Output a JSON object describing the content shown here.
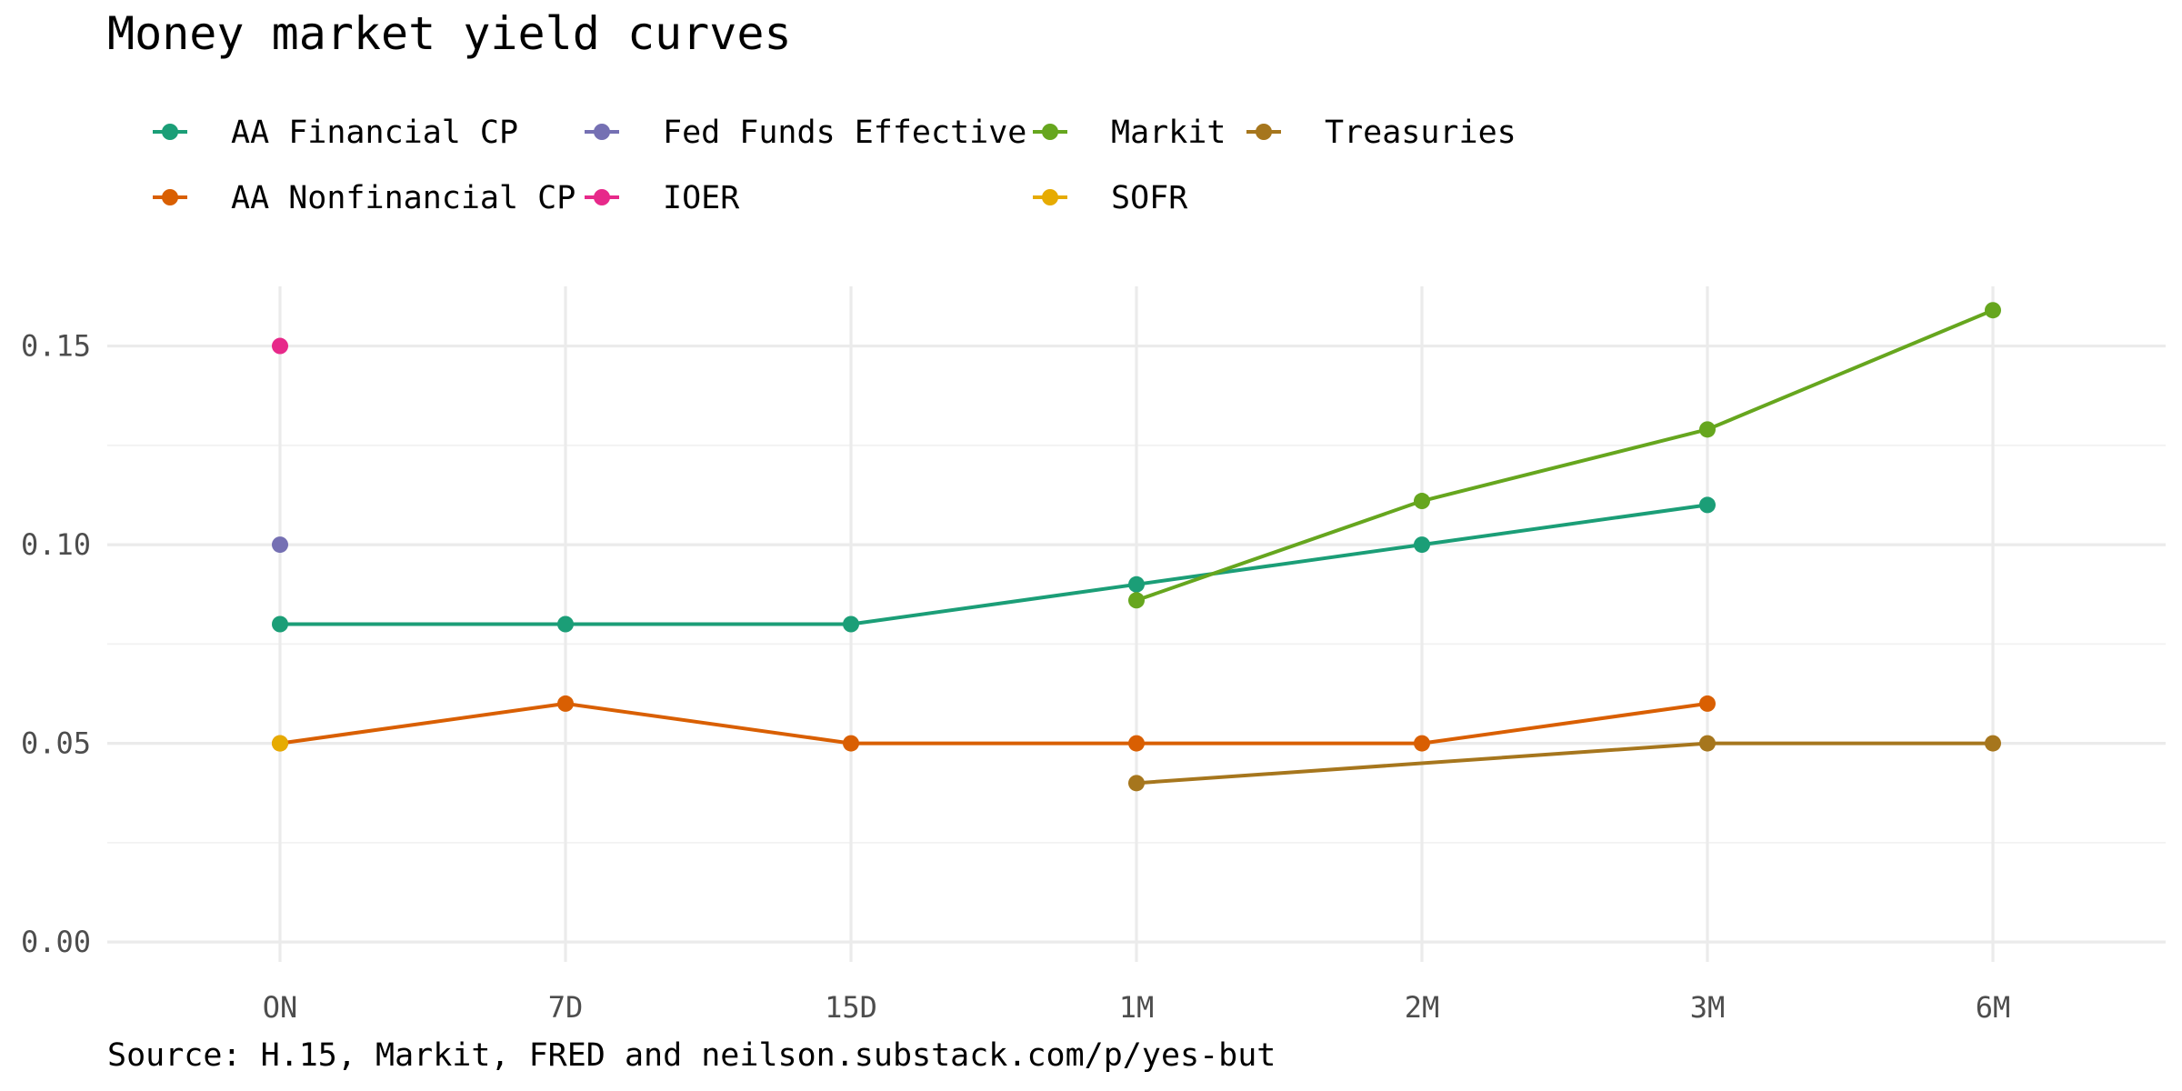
{
  "chart_data": {
    "type": "line",
    "title": "Money market yield curves",
    "caption": "Source: H.15, Markit, FRED and neilson.substack.com/p/yes-but",
    "xlabel": "",
    "ylabel": "",
    "categories": [
      "ON",
      "7D",
      "15D",
      "1M",
      "2M",
      "3M",
      "6M"
    ],
    "y_ticks": [
      "0.00",
      "0.05",
      "0.10",
      "0.15"
    ],
    "ylim": [
      -0.005,
      0.165
    ],
    "grid": true,
    "legend_position": "top",
    "series": [
      {
        "name": "AA Financial CP",
        "color": "#1b9e77",
        "values": [
          0.08,
          0.08,
          0.08,
          0.09,
          0.1,
          0.11,
          null
        ]
      },
      {
        "name": "AA Nonfinancial CP",
        "color": "#d95f02",
        "values": [
          0.05,
          0.06,
          0.05,
          0.05,
          0.05,
          0.06,
          null
        ]
      },
      {
        "name": "Fed Funds Effective",
        "color": "#7570b3",
        "values": [
          0.1,
          null,
          null,
          null,
          null,
          null,
          null
        ]
      },
      {
        "name": "IOER",
        "color": "#e7298a",
        "values": [
          0.15,
          null,
          null,
          null,
          null,
          null,
          null
        ]
      },
      {
        "name": "Markit",
        "color": "#66a61e",
        "values": [
          null,
          null,
          null,
          0.086,
          0.111,
          0.129,
          0.159
        ]
      },
      {
        "name": "SOFR",
        "color": "#e6ab02",
        "values": [
          0.05,
          null,
          null,
          null,
          null,
          null,
          null
        ]
      },
      {
        "name": "Treasuries",
        "color": "#a6761d",
        "values": [
          null,
          null,
          null,
          0.04,
          null,
          0.05,
          0.05
        ]
      }
    ],
    "series_lines": [
      {
        "series": "AA Financial CP",
        "x": [
          "ON",
          "7D",
          "15D",
          "1M",
          "2M",
          "3M"
        ]
      },
      {
        "series": "AA Nonfinancial CP",
        "x": [
          "ON",
          "7D",
          "15D",
          "1M",
          "2M",
          "3M"
        ]
      },
      {
        "series": "Markit",
        "x": [
          "1M",
          "2M",
          "3M",
          "6M"
        ]
      },
      {
        "series": "Treasuries",
        "x": [
          "1M",
          "3M",
          "6M"
        ]
      }
    ],
    "legend_order": [
      "AA Financial CP",
      "AA Nonfinancial CP",
      "Fed Funds Effective",
      "IOER",
      "Markit",
      "SOFR",
      "Treasuries"
    ]
  }
}
